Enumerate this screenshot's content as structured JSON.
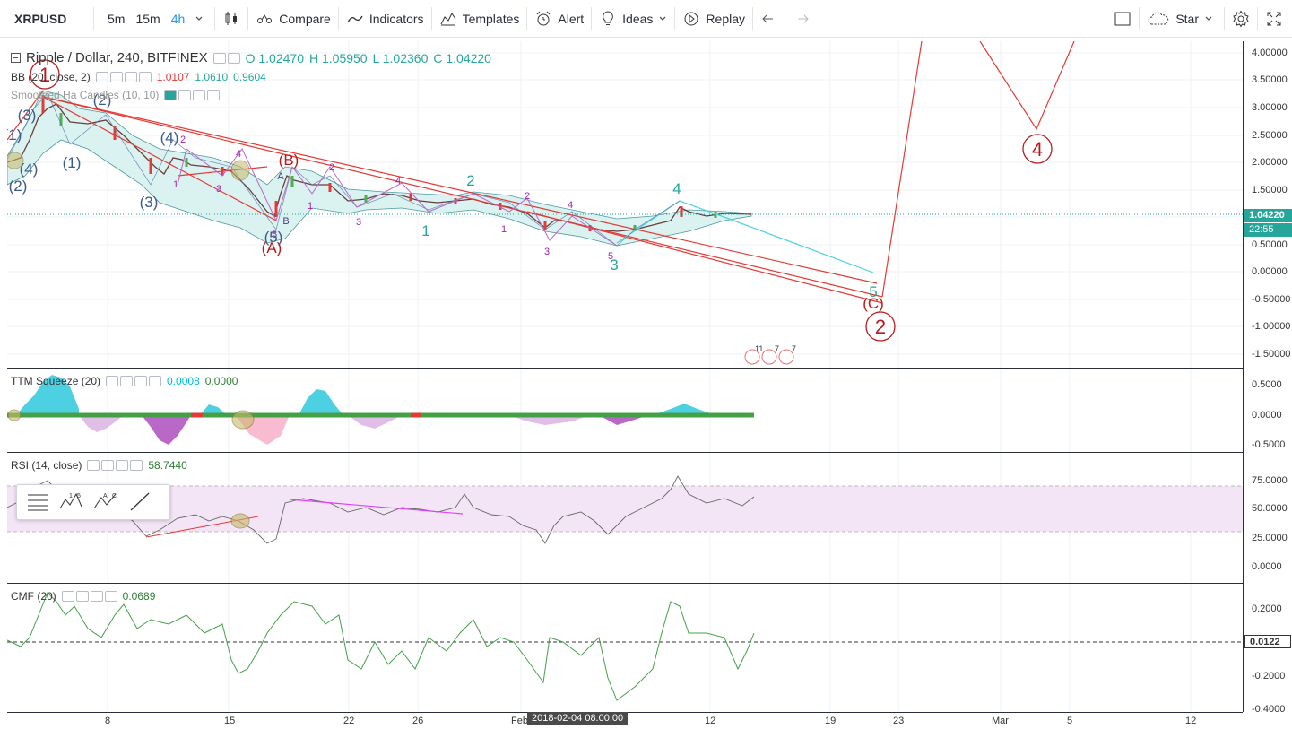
{
  "toolbar": {
    "symbol": "XRPUSD",
    "timeframes": [
      "5m",
      "15m",
      "4h"
    ],
    "compare": "Compare",
    "indicators": "Indicators",
    "templates": "Templates",
    "alert": "Alert",
    "ideas": "Ideas",
    "replay": "Replay",
    "star": "Star"
  },
  "main": {
    "title": "Ripple / Dollar, 240, BITFINEX",
    "ohlc": {
      "o": "O 1.02470",
      "h": "H 1.05950",
      "l": "L 1.02360",
      "c": "C 1.04220"
    },
    "bb_label": "BB (20, close, 2)",
    "bb_values": [
      "1.0107",
      "1.0610",
      "0.9604"
    ],
    "smooth_label": "Smoothed Ha Candles (10, 10)",
    "price_axis": [
      "4.00000",
      "3.50000",
      "3.00000",
      "2.50000",
      "2.00000",
      "1.50000",
      "1.00000",
      "0.50000",
      "0.00000",
      "-0.50000",
      "-1.00000",
      "-1.50000"
    ],
    "last_price": "1.04220",
    "countdown": "22:55"
  },
  "ttm": {
    "label": "TTM Squeeze (20)",
    "values": [
      "0.0008",
      "0.0000"
    ],
    "axis": [
      "0.5000",
      "0.0000",
      "-0.5000"
    ]
  },
  "rsi": {
    "label": "RSI (14, close)",
    "value": "58.7440",
    "axis": [
      "75.0000",
      "50.0000",
      "25.0000",
      "0.0000"
    ]
  },
  "cmf": {
    "label": "CMF (20)",
    "value": "0.0689",
    "axis": [
      "0.2000",
      "-0.2000",
      "-0.4000"
    ],
    "last": "0.0122"
  },
  "time_axis": [
    "8",
    "15",
    "22",
    "26",
    "Feb",
    "12",
    "19",
    "23",
    "Mar",
    "5",
    "12"
  ],
  "crosshair_time": "2018-02-04 08:00:00",
  "events": [
    "11",
    "7",
    "7"
  ],
  "wave_labels": {
    "red_big": [
      "1",
      "2",
      "4"
    ],
    "red_letters": [
      "(A)",
      "(B)",
      "(C)"
    ],
    "blue": [
      "(1)",
      "(2)",
      "(3)",
      "(4)",
      "(5)",
      "(1)",
      "(2)",
      "(3)",
      "(4)"
    ],
    "teal": [
      "1",
      "2",
      "3",
      "4",
      "5"
    ],
    "magenta": [
      "2",
      "1",
      "4",
      "3",
      "5",
      "2",
      "3",
      "1",
      "4",
      "2",
      "3",
      "1",
      "4",
      "5"
    ],
    "ab": [
      "A",
      "B"
    ]
  },
  "colors": {
    "accent": "#2196f3",
    "price_tag": "#26a69a",
    "red_wave": "#b71c1c",
    "teal_wave": "#26a69a",
    "magenta_wave": "#9c27b0",
    "blue_wave": "#3c5a8a"
  }
}
